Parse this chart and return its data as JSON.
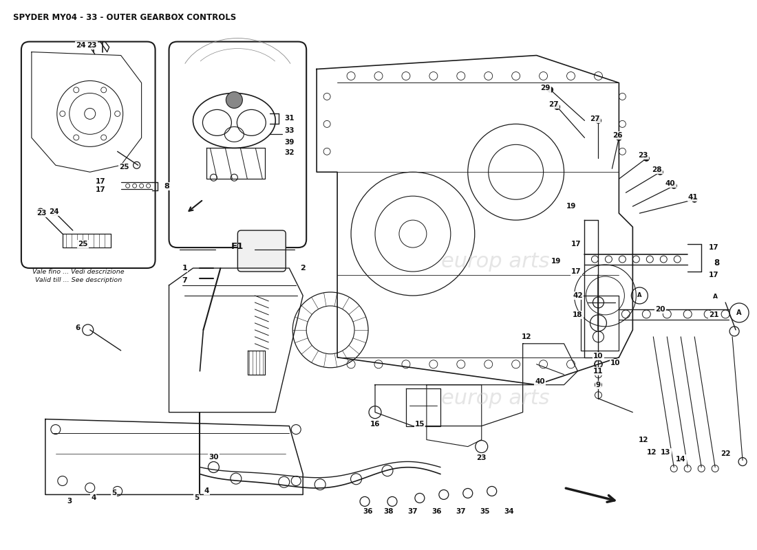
{
  "title": "SPYDER MY04 - 33 - OUTER GEARBOX CONTROLS",
  "title_fontsize": 8.5,
  "bg_color": "#ffffff",
  "line_color": "#1a1a1a",
  "text_color": "#111111",
  "watermark_color": "#cccccc",
  "watermark_text": "europ arts",
  "fig_width": 11.0,
  "fig_height": 8.0,
  "dpi": 100,
  "note_text1": "Vale fino ... Vedi descrizione",
  "note_text2": "Valid till ... See description",
  "f1_label": "F1"
}
